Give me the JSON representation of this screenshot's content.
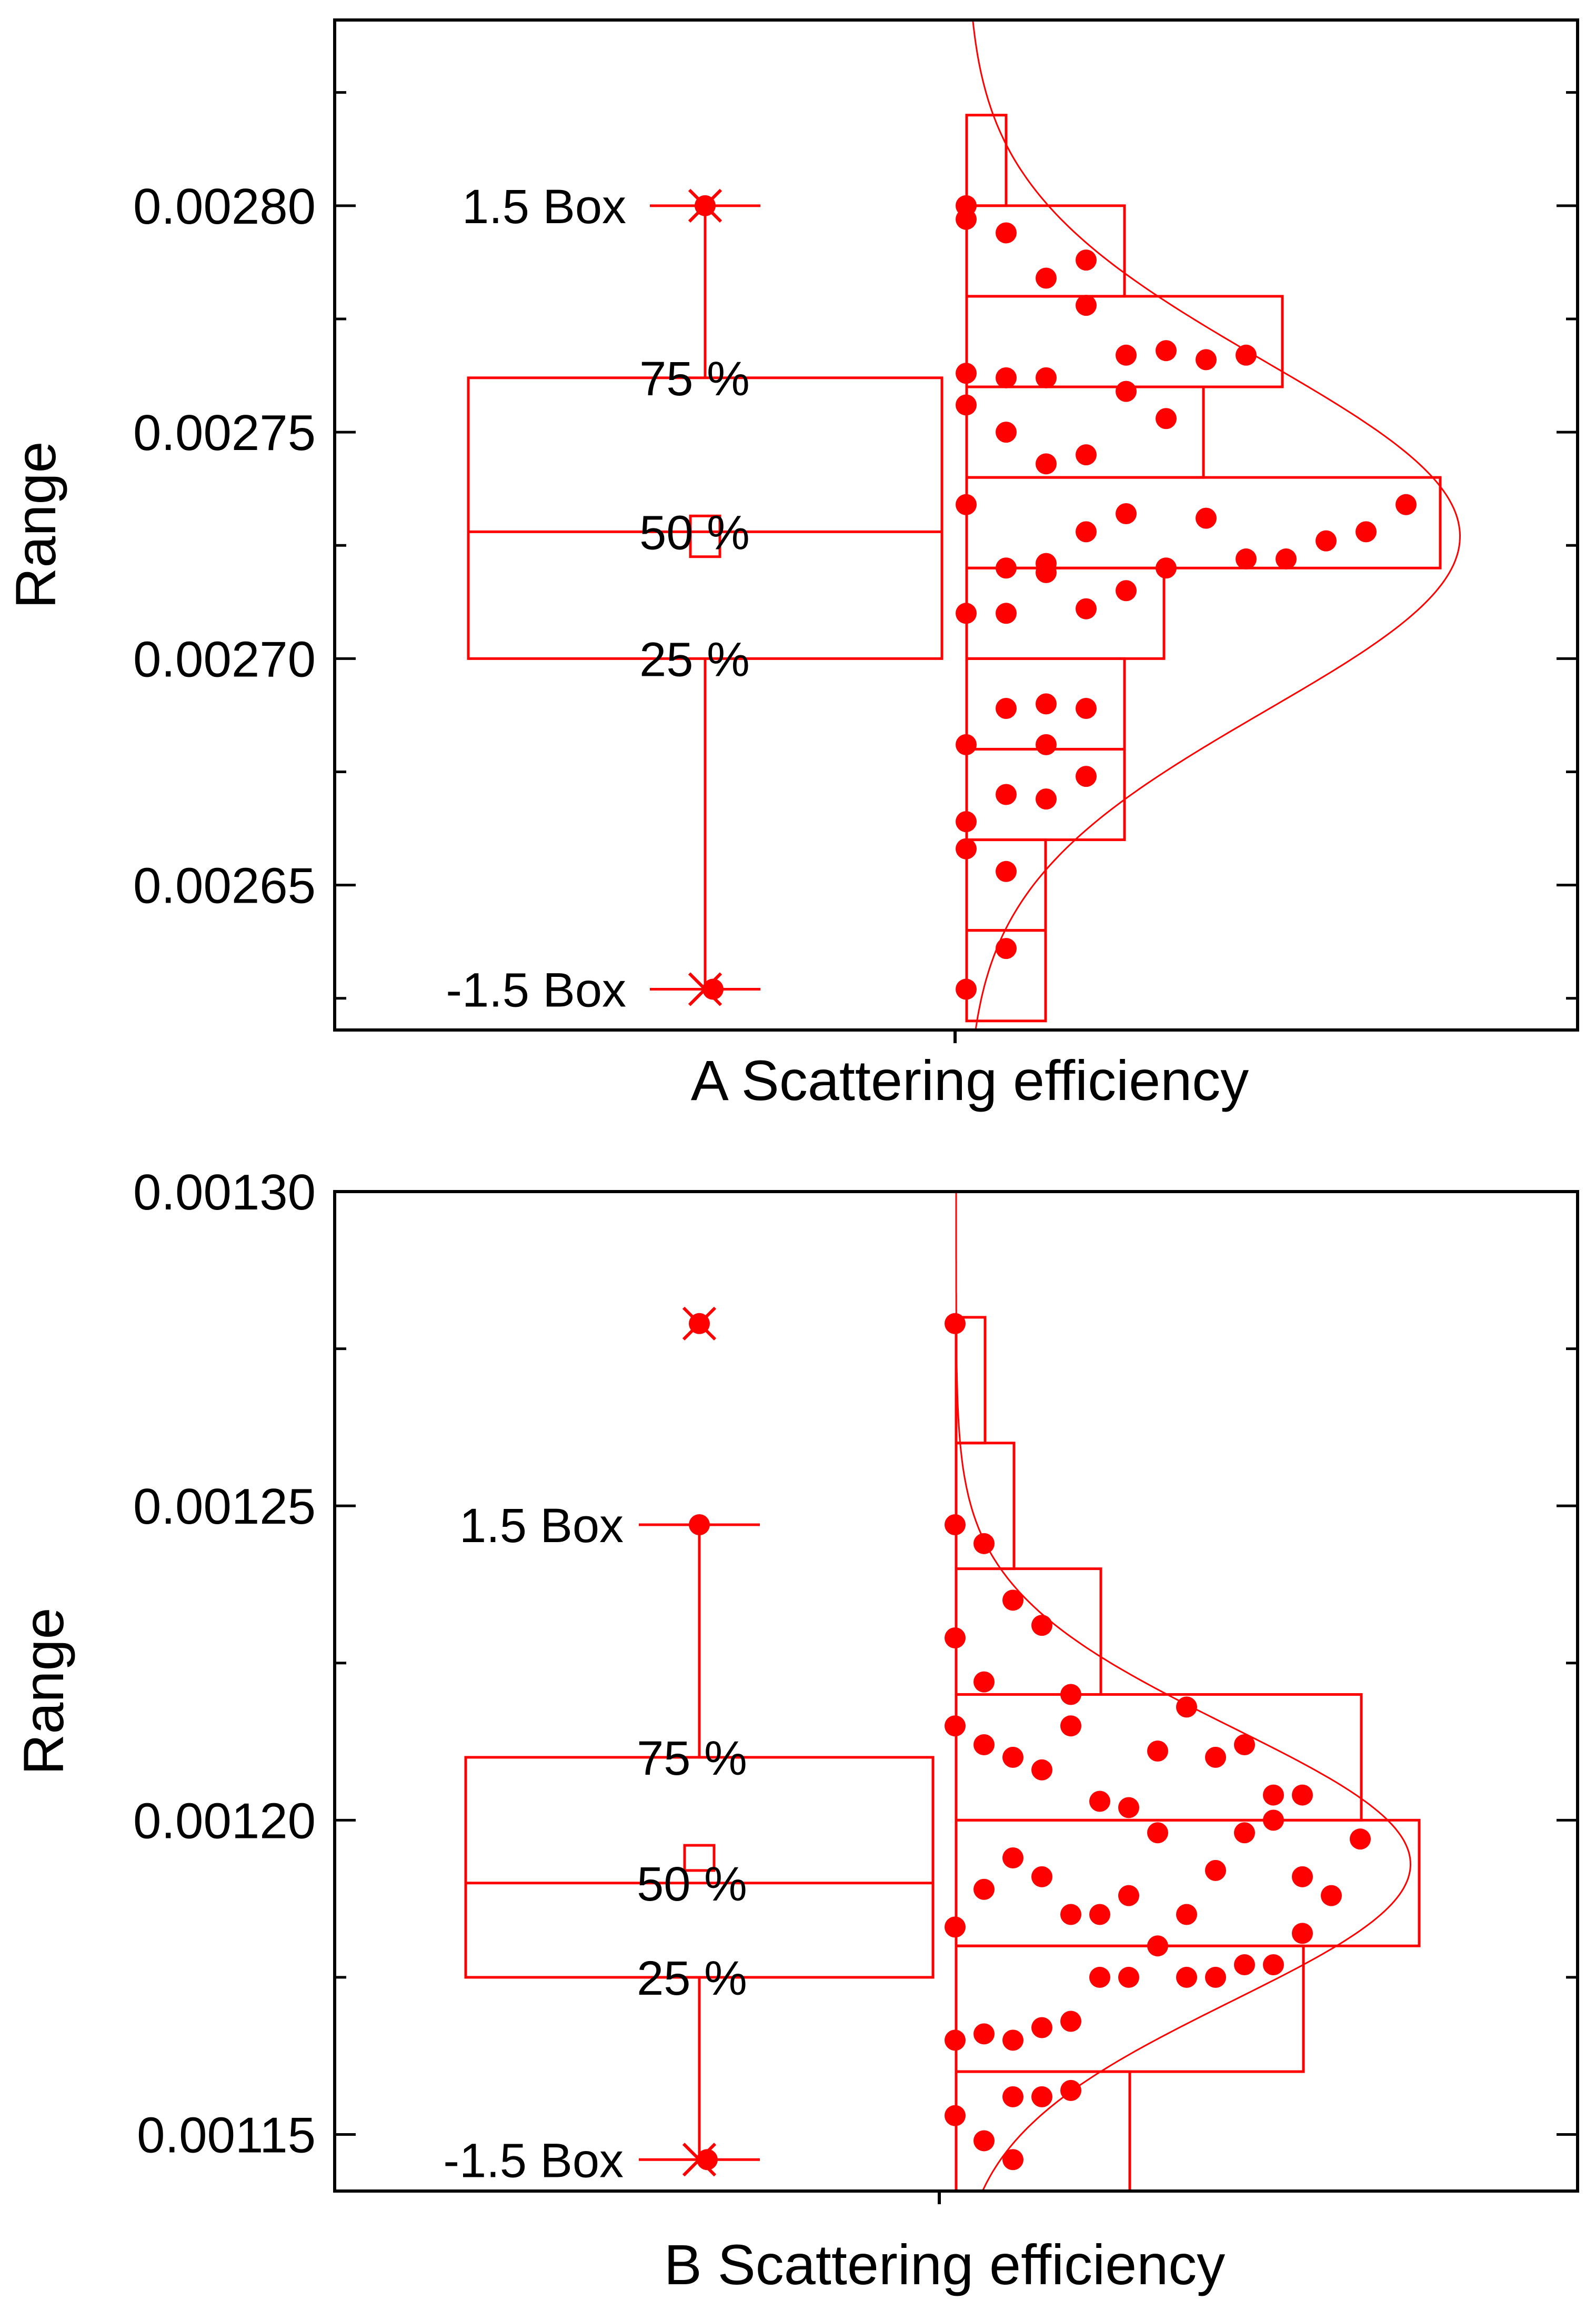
{
  "colors": {
    "series": "#ff0000",
    "axis": "#000000",
    "text": "#000000"
  },
  "chart_data": [
    {
      "type": "box-histogram",
      "panel": "A",
      "xlabel": "A Scattering efficiency",
      "ylabel": "Range",
      "ylim": [
        0.002618,
        0.002841
      ],
      "yticks": [
        0.00265,
        0.0027,
        0.00275,
        0.0028
      ],
      "ytick_labels": [
        "0.00265",
        "0.00270",
        "0.00275",
        "0.00280"
      ],
      "box": {
        "q1": 0.0027,
        "median": 0.002728,
        "q3": 0.002762,
        "mean": 0.002727,
        "mean_box_half": 4.5e-06,
        "whisker_high": 0.0028,
        "whisker_low": 0.002627,
        "labels": {
          "whisker_high": "1.5 Box",
          "q3": "75 %",
          "median": "50 %",
          "q1": "25 %",
          "whisker_low": "-1.5 Box"
        }
      },
      "markers": [
        {
          "value": 0.0028,
          "kind": "x-dot"
        },
        {
          "value": 0.002627,
          "kind": "x-dot"
        }
      ],
      "histogram": {
        "bins": [
          {
            "lo": 0.00262,
            "hi": 0.00264,
            "count": 2
          },
          {
            "lo": 0.00264,
            "hi": 0.00266,
            "count": 2
          },
          {
            "lo": 0.00266,
            "hi": 0.00268,
            "count": 4
          },
          {
            "lo": 0.00268,
            "hi": 0.0027,
            "count": 4
          },
          {
            "lo": 0.0027,
            "hi": 0.00272,
            "count": 5
          },
          {
            "lo": 0.00272,
            "hi": 0.00274,
            "count": 12
          },
          {
            "lo": 0.00274,
            "hi": 0.00276,
            "count": 6
          },
          {
            "lo": 0.00276,
            "hi": 0.00278,
            "count": 8
          },
          {
            "lo": 0.00278,
            "hi": 0.0028,
            "count": 4
          },
          {
            "lo": 0.0028,
            "hi": 0.00282,
            "count": 1
          }
        ],
        "normal_curve": {
          "mean": 0.002727,
          "sd": 3.85e-05,
          "peak_count": 12.5
        }
      },
      "points": [
        {
          "col": 0,
          "value": 0.0028
        },
        {
          "col": 0,
          "value": 0.002797
        },
        {
          "col": 1,
          "value": 0.002794
        },
        {
          "col": 2,
          "value": 0.002784
        },
        {
          "col": 3,
          "value": 0.002788
        },
        {
          "col": 3,
          "value": 0.002778
        },
        {
          "col": 0,
          "value": 0.002763
        },
        {
          "col": 1,
          "value": 0.002762
        },
        {
          "col": 2,
          "value": 0.002762
        },
        {
          "col": 4,
          "value": 0.002767
        },
        {
          "col": 5,
          "value": 0.002768
        },
        {
          "col": 6,
          "value": 0.002766
        },
        {
          "col": 7,
          "value": 0.002767
        },
        {
          "col": 4,
          "value": 0.002759
        },
        {
          "col": 0,
          "value": 0.002756
        },
        {
          "col": 1,
          "value": 0.00275
        },
        {
          "col": 2,
          "value": 0.002743
        },
        {
          "col": 3,
          "value": 0.002745
        },
        {
          "col": 5,
          "value": 0.002753
        },
        {
          "col": 0,
          "value": 0.002734
        },
        {
          "col": 1,
          "value": 0.00272
        },
        {
          "col": 2,
          "value": 0.002721
        },
        {
          "col": 2,
          "value": 0.002719
        },
        {
          "col": 3,
          "value": 0.002728
        },
        {
          "col": 4,
          "value": 0.002732
        },
        {
          "col": 5,
          "value": 0.00272
        },
        {
          "col": 6,
          "value": 0.002731
        },
        {
          "col": 7,
          "value": 0.002722
        },
        {
          "col": 8,
          "value": 0.002722
        },
        {
          "col": 9,
          "value": 0.002726
        },
        {
          "col": 10,
          "value": 0.002728
        },
        {
          "col": 11,
          "value": 0.002734
        },
        {
          "col": 0,
          "value": 0.00271
        },
        {
          "col": 1,
          "value": 0.00271
        },
        {
          "col": 3,
          "value": 0.002711
        },
        {
          "col": 4,
          "value": 0.002715
        },
        {
          "col": 1,
          "value": 0.002689
        },
        {
          "col": 2,
          "value": 0.00269
        },
        {
          "col": 3,
          "value": 0.002689
        },
        {
          "col": 0,
          "value": 0.002681
        },
        {
          "col": 2,
          "value": 0.002681
        },
        {
          "col": 1,
          "value": 0.00267
        },
        {
          "col": 2,
          "value": 0.002669
        },
        {
          "col": 3,
          "value": 0.002674
        },
        {
          "col": 0,
          "value": 0.002664
        },
        {
          "col": 0,
          "value": 0.002658
        },
        {
          "col": 1,
          "value": 0.002653
        },
        {
          "col": 1,
          "value": 0.002636
        },
        {
          "col": 0,
          "value": 0.002627
        }
      ]
    },
    {
      "type": "box-histogram",
      "panel": "B",
      "xlabel": "B Scattering efficiency",
      "ylabel": "Range",
      "ylim": [
        0.001141,
        0.0013
      ],
      "yticks": [
        0.00115,
        0.0012,
        0.00125,
        0.0013
      ],
      "ytick_labels": [
        "0.00115",
        "0.00120",
        "0.00125",
        "0.00130"
      ],
      "box": {
        "q1": 0.001175,
        "median": 0.00119,
        "q3": 0.00121,
        "mean": 0.001194,
        "mean_box_half": 2e-06,
        "whisker_high": 0.001247,
        "whisker_low": 0.001146,
        "labels": {
          "whisker_high": "1.5 Box",
          "q3": "75 %",
          "median": "50 %",
          "q1": "25 %",
          "whisker_low": "-1.5 Box"
        }
      },
      "markers": [
        {
          "value": 0.001279,
          "kind": "x-dot"
        },
        {
          "value": 0.001247,
          "kind": "dot"
        },
        {
          "value": 0.001146,
          "kind": "x-dot"
        }
      ],
      "histogram": {
        "bins": [
          {
            "lo": 0.00114,
            "hi": 0.00116,
            "count": 6
          },
          {
            "lo": 0.00116,
            "hi": 0.00118,
            "count": 12
          },
          {
            "lo": 0.00118,
            "hi": 0.0012,
            "count": 16
          },
          {
            "lo": 0.0012,
            "hi": 0.00122,
            "count": 14
          },
          {
            "lo": 0.00122,
            "hi": 0.00124,
            "count": 5
          },
          {
            "lo": 0.00124,
            "hi": 0.00126,
            "count": 2
          },
          {
            "lo": 0.00126,
            "hi": 0.00128,
            "count": 1
          }
        ],
        "normal_curve": {
          "mean": 0.001193,
          "sd": 2.18e-05,
          "peak_count": 15.7
        }
      },
      "points": [
        {
          "col": 0,
          "value": 0.001279
        },
        {
          "col": 0,
          "value": 0.001247
        },
        {
          "col": 1,
          "value": 0.001244
        },
        {
          "col": 2,
          "value": 0.001235
        },
        {
          "col": 3,
          "value": 0.001231
        },
        {
          "col": 0,
          "value": 0.001229
        },
        {
          "col": 1,
          "value": 0.001222
        },
        {
          "col": 4,
          "value": 0.00122
        },
        {
          "col": 8,
          "value": 0.001218
        },
        {
          "col": 0,
          "value": 0.001215
        },
        {
          "col": 1,
          "value": 0.001212
        },
        {
          "col": 2,
          "value": 0.00121
        },
        {
          "col": 3,
          "value": 0.001208
        },
        {
          "col": 4,
          "value": 0.001215
        },
        {
          "col": 5,
          "value": 0.001203
        },
        {
          "col": 6,
          "value": 0.001202
        },
        {
          "col": 7,
          "value": 0.001211
        },
        {
          "col": 9,
          "value": 0.00121
        },
        {
          "col": 10,
          "value": 0.001212
        },
        {
          "col": 11,
          "value": 0.001204
        },
        {
          "col": 12,
          "value": 0.001204
        },
        {
          "col": 1,
          "value": 0.001189
        },
        {
          "col": 2,
          "value": 0.001194
        },
        {
          "col": 3,
          "value": 0.001191
        },
        {
          "col": 4,
          "value": 0.001185
        },
        {
          "col": 5,
          "value": 0.001185
        },
        {
          "col": 6,
          "value": 0.001188
        },
        {
          "col": 7,
          "value": 0.001198
        },
        {
          "col": 8,
          "value": 0.001185
        },
        {
          "col": 9,
          "value": 0.001192
        },
        {
          "col": 10,
          "value": 0.001198
        },
        {
          "col": 11,
          "value": 0.0012
        },
        {
          "col": 12,
          "value": 0.001191
        },
        {
          "col": 13,
          "value": 0.001188
        },
        {
          "col": 14,
          "value": 0.001197
        },
        {
          "col": 0,
          "value": 0.001183
        },
        {
          "col": 7,
          "value": 0.00118
        },
        {
          "col": 6,
          "value": 0.001175
        },
        {
          "col": 5,
          "value": 0.001175
        },
        {
          "col": 8,
          "value": 0.001175
        },
        {
          "col": 9,
          "value": 0.001175
        },
        {
          "col": 10,
          "value": 0.001177
        },
        {
          "col": 11,
          "value": 0.001177
        },
        {
          "col": 12,
          "value": 0.001182
        },
        {
          "col": 0,
          "value": 0.001165
        },
        {
          "col": 1,
          "value": 0.001166
        },
        {
          "col": 2,
          "value": 0.001165
        },
        {
          "col": 3,
          "value": 0.001167
        },
        {
          "col": 4,
          "value": 0.001168
        },
        {
          "col": 2,
          "value": 0.001156
        },
        {
          "col": 3,
          "value": 0.001156
        },
        {
          "col": 4,
          "value": 0.001157
        },
        {
          "col": 0,
          "value": 0.001153
        },
        {
          "col": 1,
          "value": 0.001149
        },
        {
          "col": 2,
          "value": 0.001146
        }
      ]
    }
  ]
}
